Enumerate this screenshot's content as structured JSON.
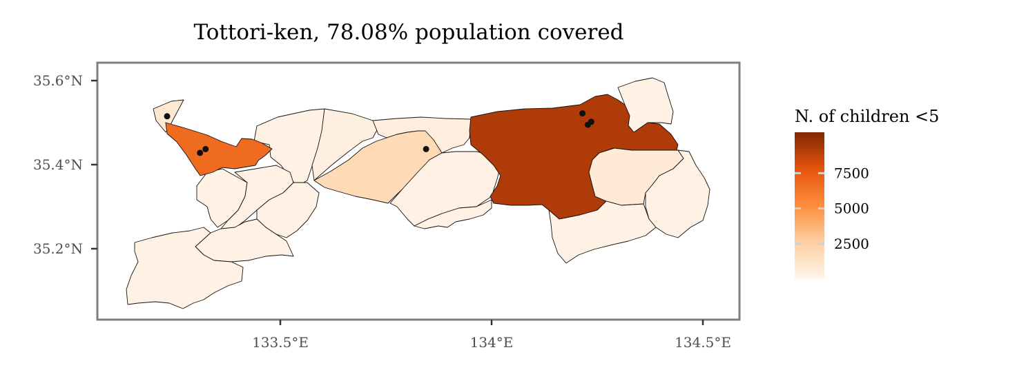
{
  "title": "Tottori-ken, 78.08% population covered",
  "map": {
    "x_ticks": [
      {
        "label": "133.5°E",
        "value": 133.5
      },
      {
        "label": "134°E",
        "value": 134.0
      },
      {
        "label": "134.5°E",
        "value": 134.5
      }
    ],
    "y_ticks": [
      {
        "label": "35.6°N",
        "value": 35.6
      },
      {
        "label": "35.4°N",
        "value": 35.4
      },
      {
        "label": "35.2°N",
        "value": 35.2
      }
    ],
    "regions": [
      {
        "id": "sakaiminato",
        "value": 900
      },
      {
        "id": "yonago",
        "value": 6800
      },
      {
        "id": "daisen-coast",
        "value": 200
      },
      {
        "id": "kotoura",
        "value": 400
      },
      {
        "id": "kurayoshi",
        "value": 1900
      },
      {
        "id": "yurihama",
        "value": 500
      },
      {
        "id": "misasa",
        "value": 200
      },
      {
        "id": "tottori",
        "value": 9200
      },
      {
        "id": "yazu",
        "value": 800
      },
      {
        "id": "iwami",
        "value": 200
      },
      {
        "id": "chizu",
        "value": 300
      },
      {
        "id": "wakasa",
        "value": 250
      },
      {
        "id": "hoki",
        "value": 250
      },
      {
        "id": "nanbu",
        "value": 250
      },
      {
        "id": "kofu",
        "value": 200
      },
      {
        "id": "hino",
        "value": 200
      },
      {
        "id": "nichinan",
        "value": 250
      },
      {
        "id": "misasa-south",
        "value": 300
      }
    ],
    "points": [
      {
        "lon": 133.232,
        "lat": 35.515
      },
      {
        "lon": 133.31,
        "lat": 35.428
      },
      {
        "lon": 133.323,
        "lat": 35.437
      },
      {
        "lon": 133.845,
        "lat": 35.437
      },
      {
        "lon": 134.215,
        "lat": 35.522
      },
      {
        "lon": 134.228,
        "lat": 35.495
      },
      {
        "lon": 134.236,
        "lat": 35.502
      }
    ]
  },
  "legend": {
    "title": "N. of children <5",
    "ticks": [
      {
        "label": "7500",
        "value": 7500
      },
      {
        "label": "5000",
        "value": 5000
      },
      {
        "label": "2500",
        "value": 2500
      }
    ],
    "min": 0,
    "max": 10400,
    "colors": [
      "#fff5eb",
      "#fdd0a2",
      "#fd8d3c",
      "#e6550d",
      "#7f2704"
    ]
  }
}
